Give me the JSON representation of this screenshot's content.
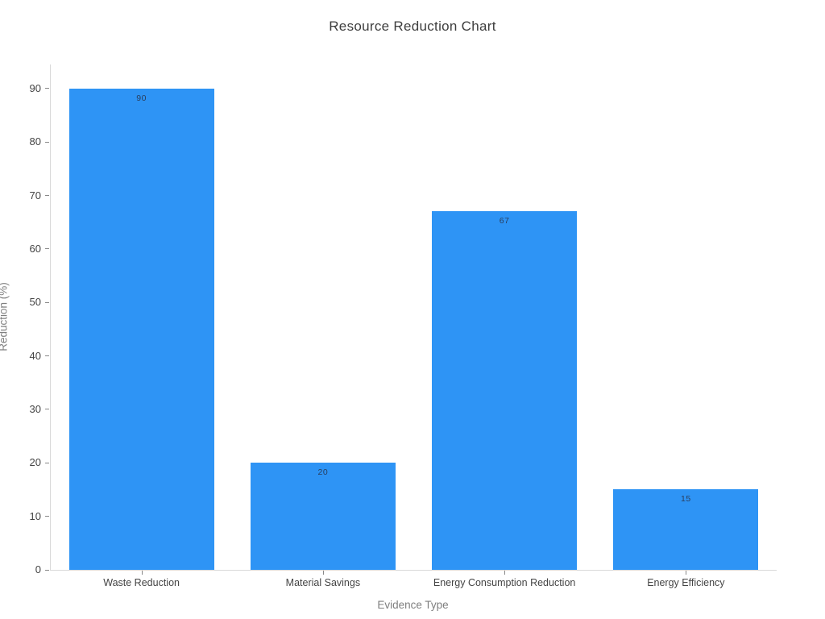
{
  "chart_data": {
    "type": "bar",
    "title": "Resource Reduction Chart",
    "xlabel": "Evidence Type",
    "ylabel": "Reduction (%)",
    "categories": [
      "Waste Reduction",
      "Material Savings",
      "Energy Consumption Reduction",
      "Energy Efficiency"
    ],
    "values": [
      90,
      20,
      67,
      15
    ],
    "bar_labels": [
      "90",
      "20",
      "67",
      "15"
    ],
    "yticks": [
      0,
      10,
      20,
      30,
      40,
      50,
      60,
      70,
      80,
      90
    ],
    "ylim": [
      0,
      94.5
    ],
    "grid": false,
    "legend": null,
    "bar_width_fraction": 0.8,
    "colors": {
      "bar": "#2e94f5",
      "title_text": "#3d3d3d",
      "tick_text": "#444444",
      "axis_title_text": "#7f7f7f",
      "axis_line": "#d9d9d9",
      "tick_mark": "#888888",
      "bar_label_text": "#2a3f5f"
    }
  }
}
